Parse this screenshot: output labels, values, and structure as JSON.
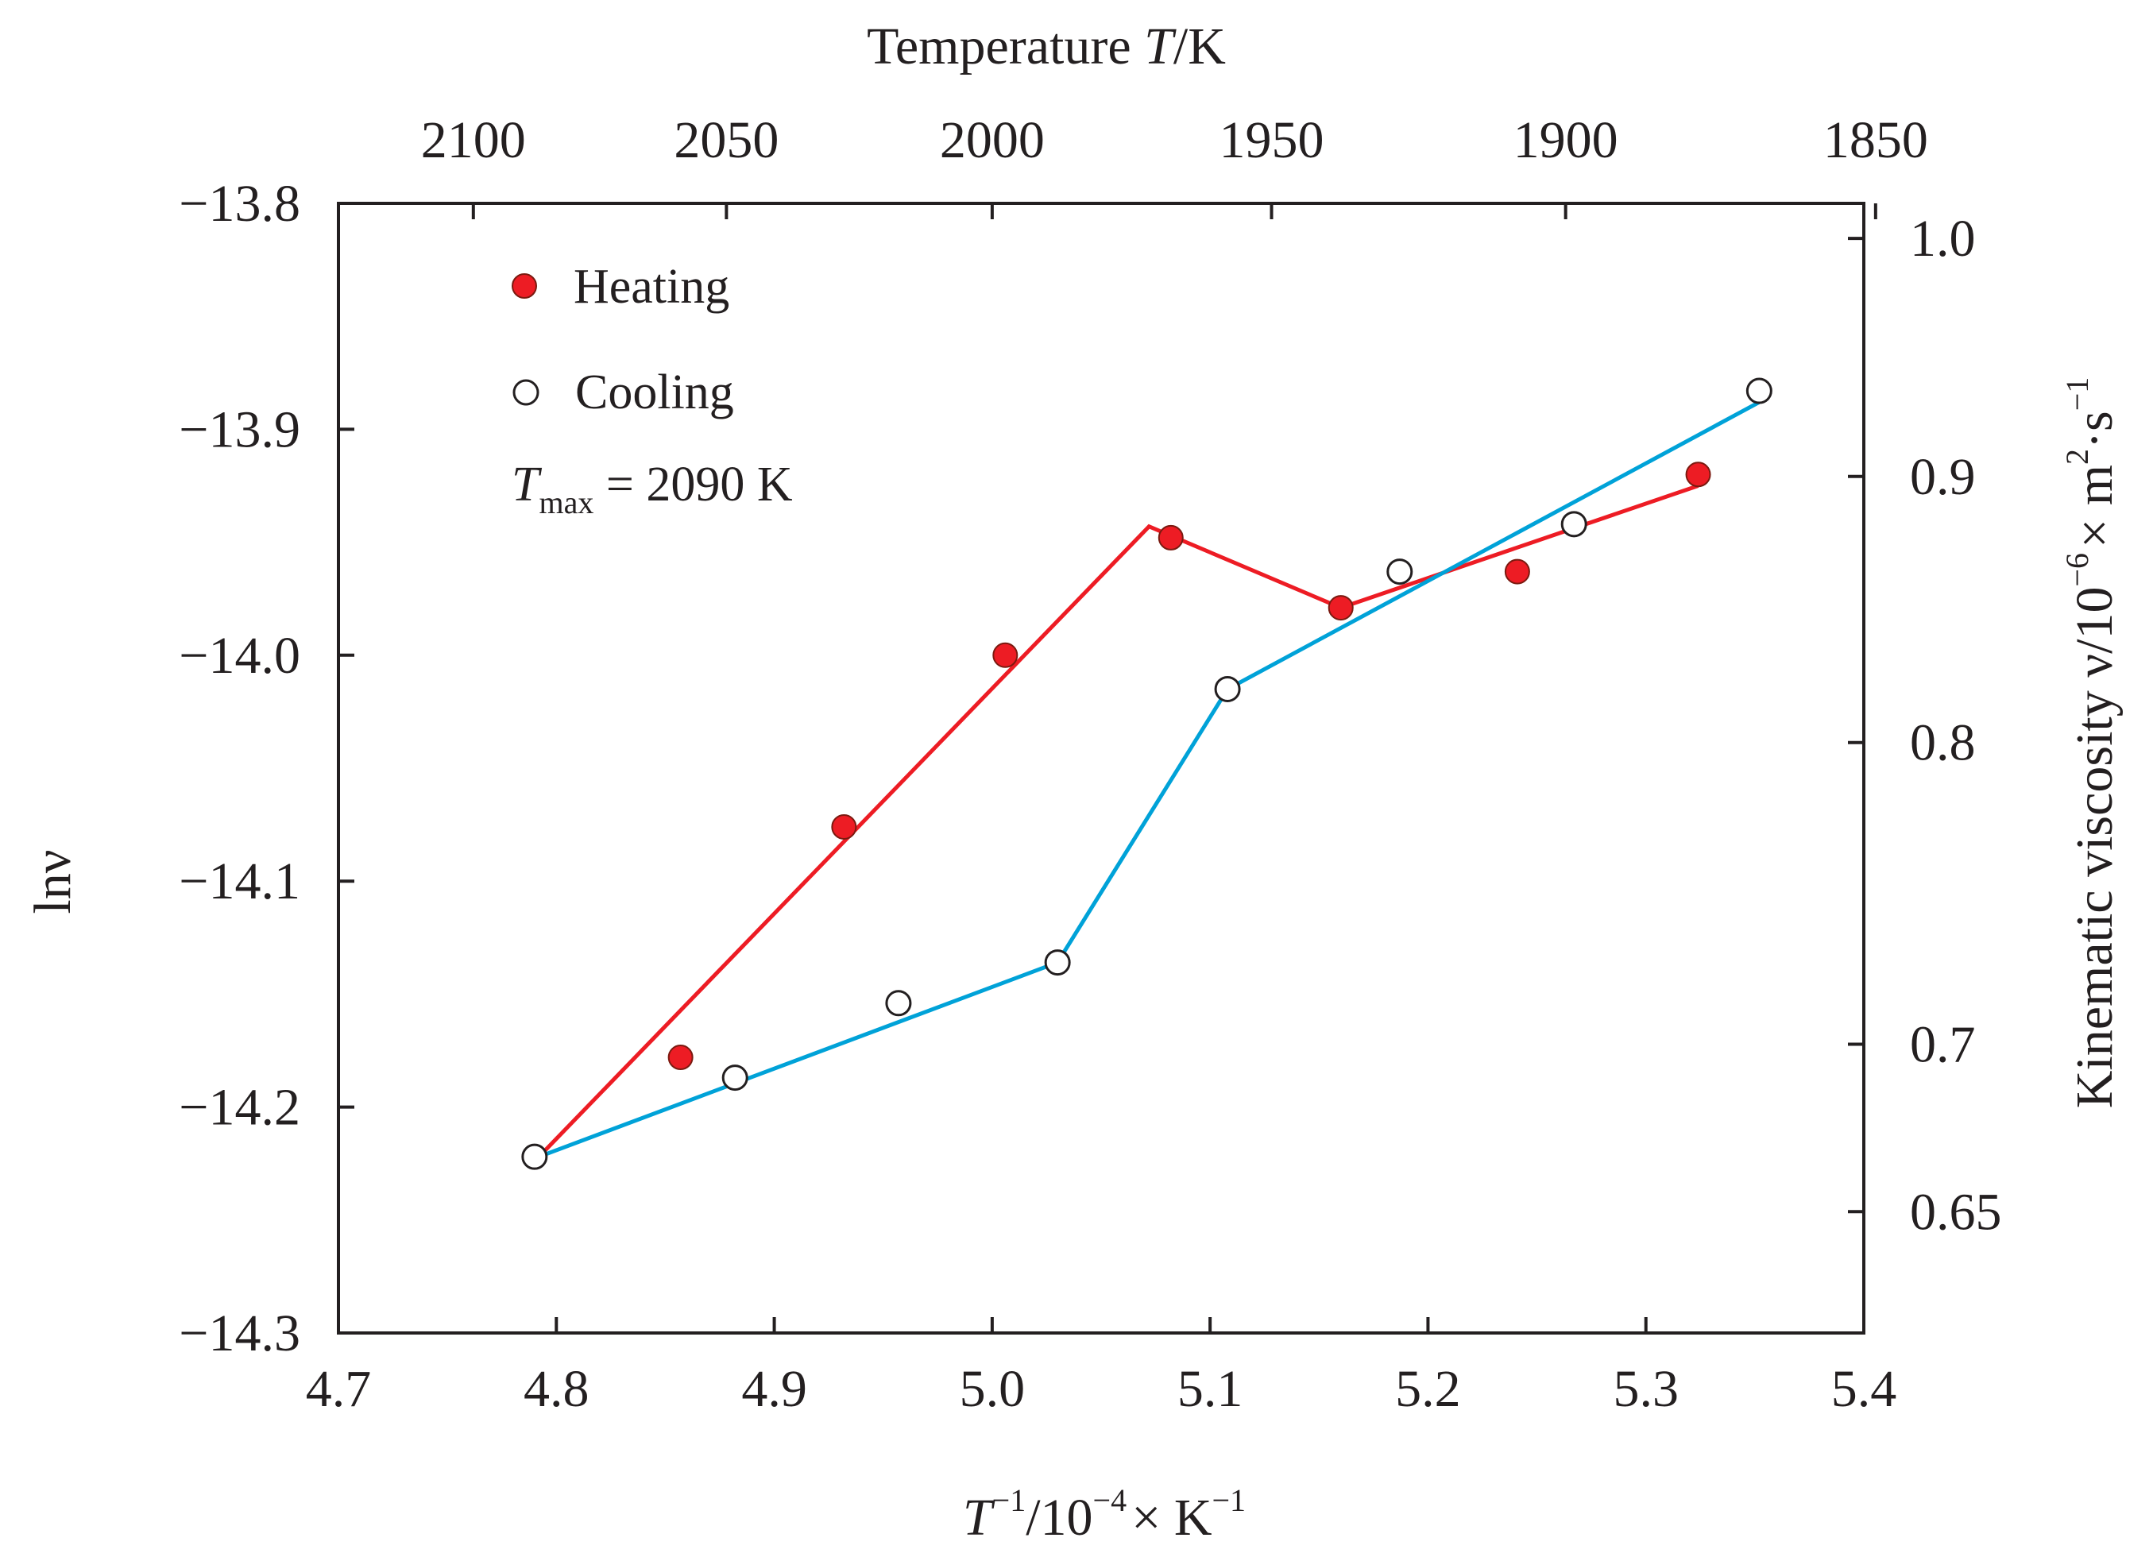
{
  "chart_data": {
    "type": "scatter",
    "title": "",
    "x_axis": {
      "label_base": "T",
      "label_sup1": "−1",
      "label_mid": "/10",
      "label_sup2": "−4",
      "label_unit": "× K",
      "label_sup3": "−1",
      "range": [
        4.7,
        5.4
      ],
      "ticks": [
        4.7,
        4.8,
        4.9,
        5.0,
        5.1,
        5.2,
        5.3,
        5.4
      ],
      "tick_labels": [
        "4.7",
        "4.8",
        "4.9",
        "5.0",
        "5.1",
        "5.2",
        "5.3",
        "5.4"
      ]
    },
    "y_axis": {
      "label": "lnν",
      "range": [
        -14.3,
        -13.8
      ],
      "ticks": [
        -14.3,
        -14.2,
        -14.1,
        -14.0,
        -13.9,
        -13.8
      ],
      "tick_labels": [
        "−14.3",
        "−14.2",
        "−14.1",
        "−14.0",
        "−13.9",
        "−13.8"
      ]
    },
    "top_axis": {
      "label_prefix": "Temperature ",
      "label_italic": "T",
      "label_suffix": "/K",
      "ticks": [
        2100,
        2050,
        2000,
        1950,
        1900,
        1850
      ],
      "tick_labels": [
        "2100",
        "2050",
        "2000",
        "1950",
        "1900",
        "1850"
      ]
    },
    "right_axis": {
      "label_main": "Kinematic viscosity ν/10",
      "label_sup1": "−6",
      "label_mid": "× m",
      "label_sup2": "2",
      "label_tail": "·s",
      "label_sup3": "−1",
      "ticks": [
        1.0,
        0.9,
        0.8,
        0.7,
        0.65
      ],
      "tick_labels": [
        "1.0",
        "0.9",
        "0.8",
        "0.7",
        "0.65"
      ]
    },
    "series": [
      {
        "name": "Heating",
        "marker": "filled-circle",
        "color": "#ed1c24",
        "points": [
          {
            "x": 4.857,
            "y": -14.178
          },
          {
            "x": 4.932,
            "y": -14.076
          },
          {
            "x": 5.006,
            "y": -14.0
          },
          {
            "x": 5.082,
            "y": -13.948
          },
          {
            "x": 5.16,
            "y": -13.979
          },
          {
            "x": 5.241,
            "y": -13.963
          },
          {
            "x": 5.324,
            "y": -13.92
          }
        ],
        "line": [
          {
            "x": 4.792,
            "y": -14.222
          },
          {
            "x": 5.072,
            "y": -13.943
          },
          {
            "x": 5.16,
            "y": -13.979
          },
          {
            "x": 5.324,
            "y": -13.925
          }
        ]
      },
      {
        "name": "Cooling",
        "marker": "open-circle",
        "color": "#00a2d8",
        "points": [
          {
            "x": 4.79,
            "y": -14.222
          },
          {
            "x": 4.882,
            "y": -14.187
          },
          {
            "x": 4.957,
            "y": -14.154
          },
          {
            "x": 5.03,
            "y": -14.136
          },
          {
            "x": 5.108,
            "y": -14.015
          },
          {
            "x": 5.187,
            "y": -13.963
          },
          {
            "x": 5.267,
            "y": -13.942
          },
          {
            "x": 5.352,
            "y": -13.883
          }
        ],
        "line": [
          {
            "x": 4.792,
            "y": -14.222
          },
          {
            "x": 5.03,
            "y": -14.136
          },
          {
            "x": 5.108,
            "y": -14.015
          },
          {
            "x": 5.352,
            "y": -13.888
          }
        ]
      }
    ],
    "legend": {
      "placement": "top-left",
      "heating_label": "Heating",
      "cooling_label": "Cooling"
    },
    "annotation": {
      "symbol": "T",
      "subscript": "max",
      "value_text": " = 2090 K"
    }
  }
}
